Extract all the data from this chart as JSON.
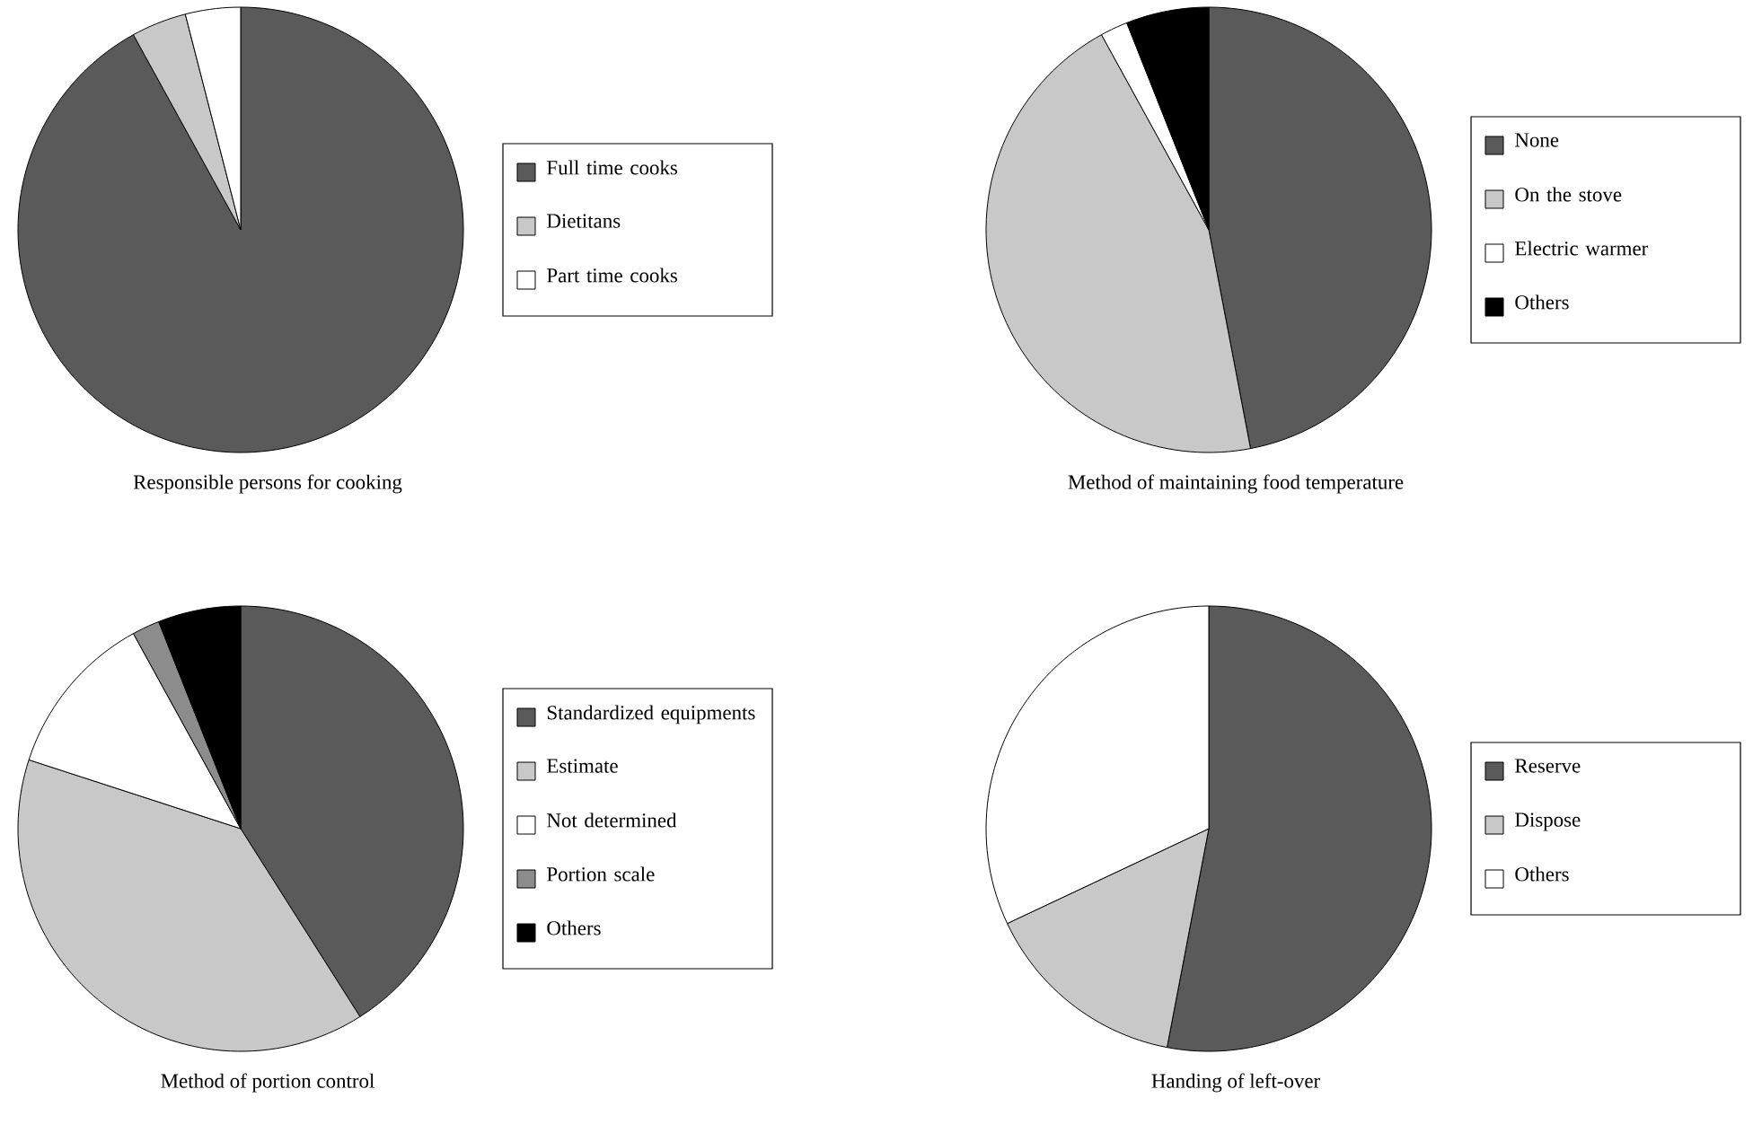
{
  "chart_data": [
    {
      "type": "pie",
      "title": "Responsible persons for cooking",
      "categories": [
        "Full time cooks",
        "Dietitans",
        "Part time cooks"
      ],
      "values": [
        92,
        4,
        4
      ],
      "colors": [
        "#5a5a5a",
        "#c8c8c8",
        "#ffffff"
      ],
      "legend": "right"
    },
    {
      "type": "pie",
      "title": "Method of maintaining food temperature",
      "categories": [
        "None",
        "On the stove",
        "Electric warmer",
        "Others"
      ],
      "values": [
        47,
        45,
        2,
        6
      ],
      "colors": [
        "#5a5a5a",
        "#c8c8c8",
        "#ffffff",
        "#000000"
      ],
      "legend": "right"
    },
    {
      "type": "pie",
      "title": "Method of portion control",
      "categories": [
        "Standardized equipments",
        "Estimate",
        "Not determined",
        "Portion scale",
        "Others"
      ],
      "values": [
        41,
        39,
        12,
        2,
        6
      ],
      "colors": [
        "#5a5a5a",
        "#c8c8c8",
        "#ffffff",
        "#8c8c8c",
        "#000000"
      ],
      "legend": "right"
    },
    {
      "type": "pie",
      "title": "Handing of left-over",
      "categories": [
        "Reserve",
        "Dispose",
        "Others"
      ],
      "values": [
        53,
        15,
        32
      ],
      "colors": [
        "#5a5a5a",
        "#c8c8c8",
        "#ffffff"
      ],
      "legend": "right"
    }
  ]
}
